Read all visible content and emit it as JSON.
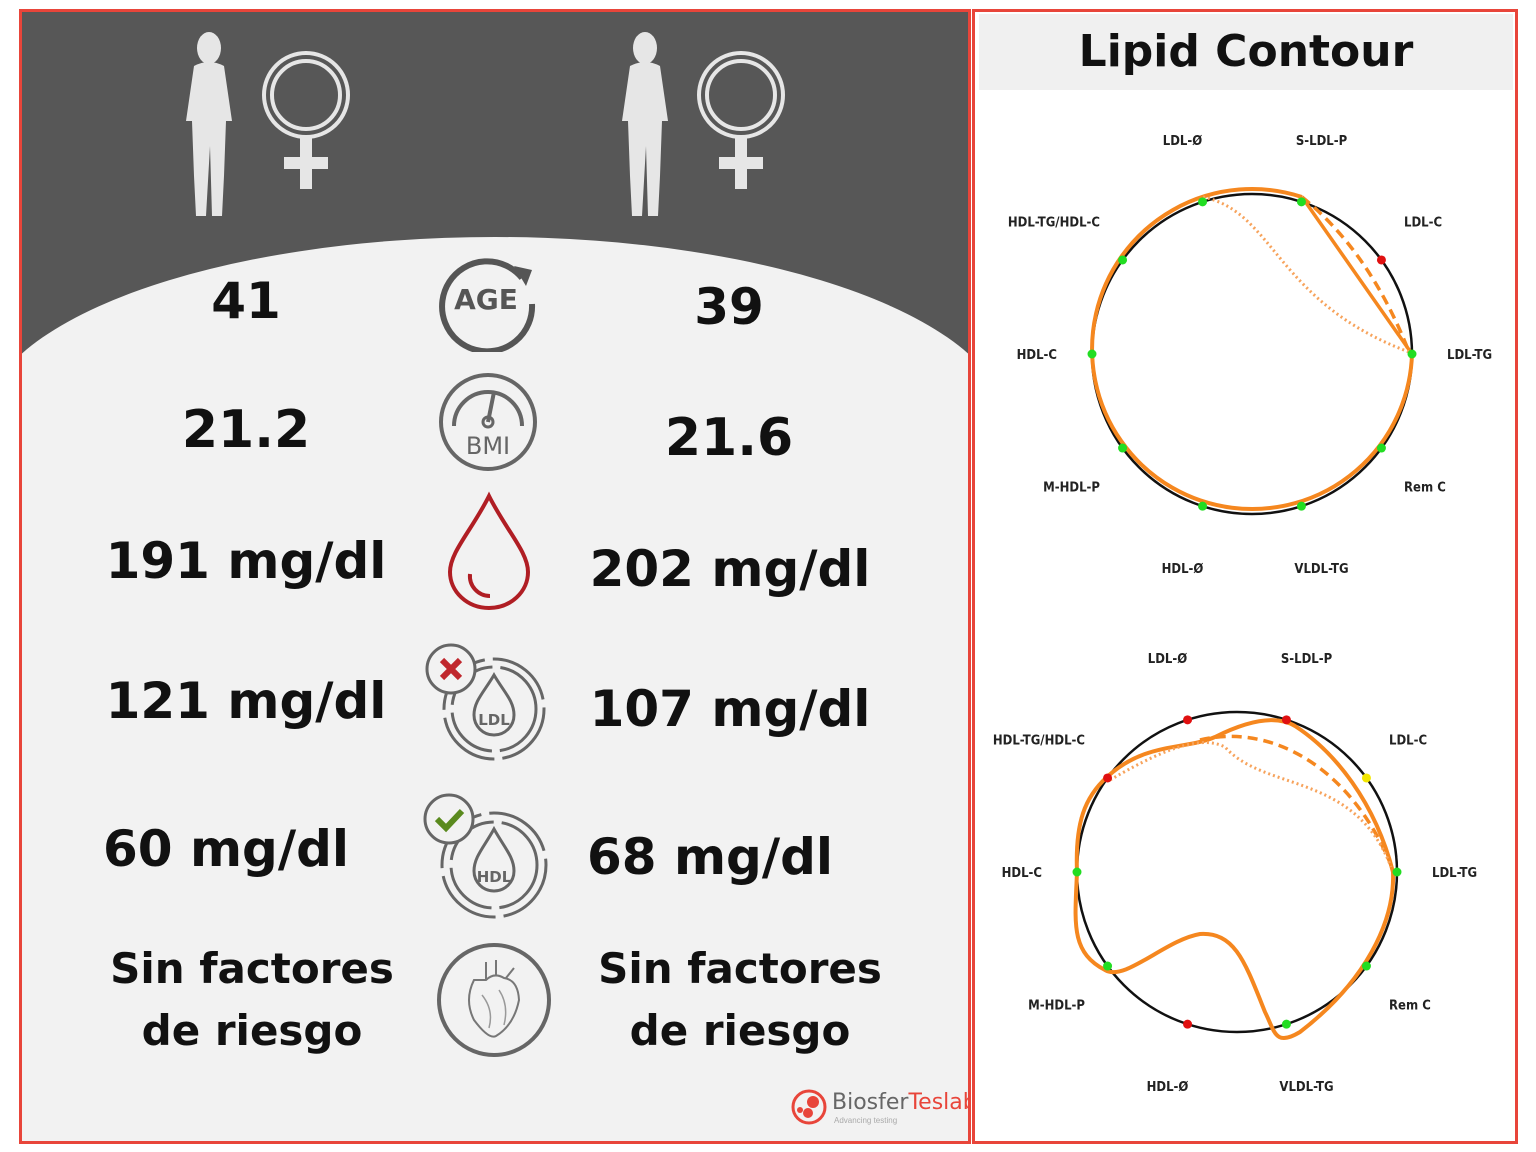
{
  "left_panel": {
    "person_a": {
      "age": "41",
      "bmi": "21.2",
      "total_cholesterol": "191 mg/dl",
      "ldl": "121 mg/dl",
      "hdl": "60 mg/dl",
      "risk_line1": "Sin factores",
      "risk_line2": "de riesgo"
    },
    "person_b": {
      "age": "39",
      "bmi": "21.6",
      "total_cholesterol": "202 mg/dl",
      "ldl": "107 mg/dl",
      "hdl": "68 mg/dl",
      "risk_line1": "Sin factores",
      "risk_line2": "de riesgo"
    },
    "icons": {
      "age": "AGE",
      "bmi": "BMI",
      "ldl": "LDL",
      "hdl": "HDL"
    },
    "logo": {
      "name_a": "Biosfer",
      "name_b": "Teslab",
      "tagline": "Advancing testing"
    }
  },
  "right_panel": {
    "title": "Lipid Contour"
  },
  "chart_data": [
    {
      "type": "radar",
      "axes": [
        "S-LDL-P",
        "LDL-C",
        "LDL-TG",
        "Rem C",
        "VLDL-TG",
        "HDL-Ø",
        "M-HDL-P",
        "HDL-C",
        "HDL-TG/HDL-C",
        "LDL-Ø"
      ],
      "point_status": [
        "green",
        "red",
        "green",
        "green",
        "green",
        "green",
        "green",
        "green",
        "green",
        "green"
      ]
    },
    {
      "type": "radar",
      "axes": [
        "S-LDL-P",
        "LDL-C",
        "LDL-TG",
        "Rem C",
        "VLDL-TG",
        "HDL-Ø",
        "M-HDL-P",
        "HDL-C",
        "HDL-TG/HDL-C",
        "LDL-Ø"
      ],
      "point_status": [
        "red",
        "yellow",
        "green",
        "green",
        "green",
        "red",
        "green",
        "green",
        "red",
        "red"
      ]
    }
  ],
  "colors": {
    "green": "#22dd22",
    "red": "#e01010",
    "yellow": "#f2e600",
    "orange": "#f5871f",
    "border": "#e8453a"
  }
}
